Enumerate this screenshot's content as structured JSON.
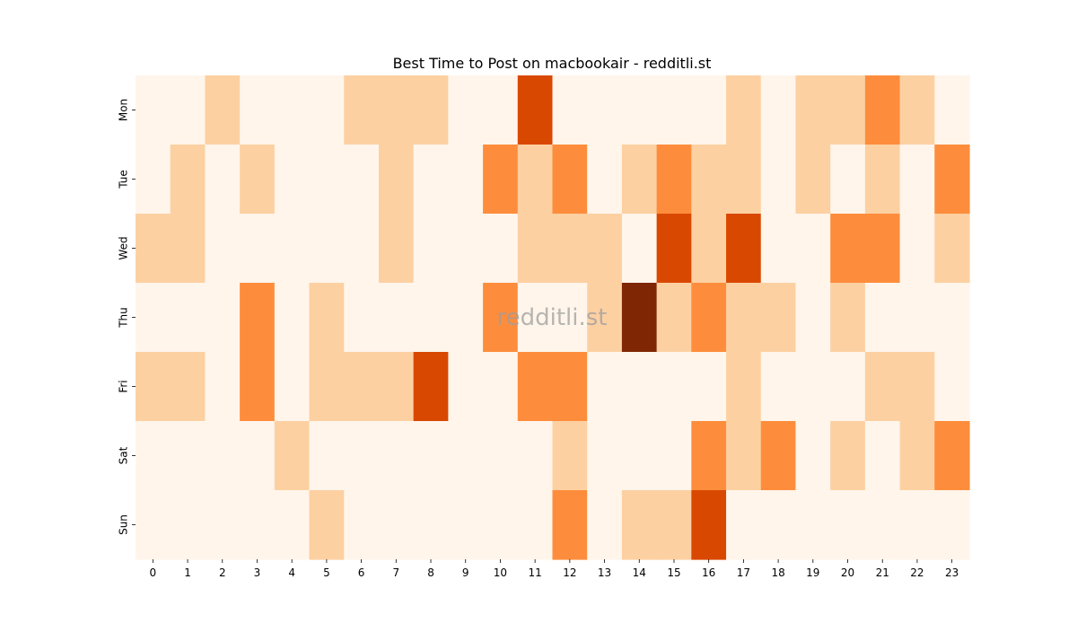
{
  "chart_data": {
    "type": "heatmap",
    "title": "Best Time to Post on macbookair - redditli.st",
    "watermark": "redditli.st",
    "xlabel": "",
    "ylabel": "",
    "x_categories": [
      "0",
      "1",
      "2",
      "3",
      "4",
      "5",
      "6",
      "7",
      "8",
      "9",
      "10",
      "11",
      "12",
      "13",
      "14",
      "15",
      "16",
      "17",
      "18",
      "19",
      "20",
      "21",
      "22",
      "23"
    ],
    "y_categories": [
      "Mon",
      "Tue",
      "Wed",
      "Thu",
      "Fri",
      "Sat",
      "Sun"
    ],
    "values": [
      [
        0,
        0,
        1,
        0,
        0,
        0,
        1,
        1,
        1,
        0,
        0,
        3,
        0,
        0,
        0,
        0,
        0,
        1,
        0,
        1,
        1,
        2,
        1,
        0
      ],
      [
        0,
        1,
        0,
        1,
        0,
        0,
        0,
        1,
        0,
        0,
        2,
        1,
        2,
        0,
        1,
        2,
        1,
        1,
        0,
        1,
        0,
        1,
        0,
        2
      ],
      [
        1,
        1,
        0,
        0,
        0,
        0,
        0,
        1,
        0,
        0,
        0,
        1,
        1,
        1,
        0,
        3,
        1,
        3,
        0,
        0,
        2,
        2,
        0,
        1
      ],
      [
        0,
        0,
        0,
        2,
        0,
        1,
        0,
        0,
        0,
        0,
        2,
        0,
        0,
        1,
        4,
        1,
        2,
        1,
        1,
        0,
        1,
        0,
        0,
        0
      ],
      [
        1,
        1,
        0,
        2,
        0,
        1,
        1,
        1,
        3,
        0,
        0,
        2,
        2,
        0,
        0,
        0,
        0,
        1,
        0,
        0,
        0,
        1,
        1,
        0
      ],
      [
        0,
        0,
        0,
        0,
        1,
        0,
        0,
        0,
        0,
        0,
        0,
        0,
        1,
        0,
        0,
        0,
        2,
        1,
        2,
        0,
        1,
        0,
        1,
        2
      ],
      [
        0,
        0,
        0,
        0,
        0,
        1,
        0,
        0,
        0,
        0,
        0,
        0,
        2,
        0,
        1,
        1,
        3,
        0,
        0,
        0,
        0,
        0,
        0,
        0
      ]
    ],
    "colormap": [
      "#fff5eb",
      "#fdd0a2",
      "#fd8d3c",
      "#d94801",
      "#7f2704"
    ],
    "colorbar": false
  }
}
